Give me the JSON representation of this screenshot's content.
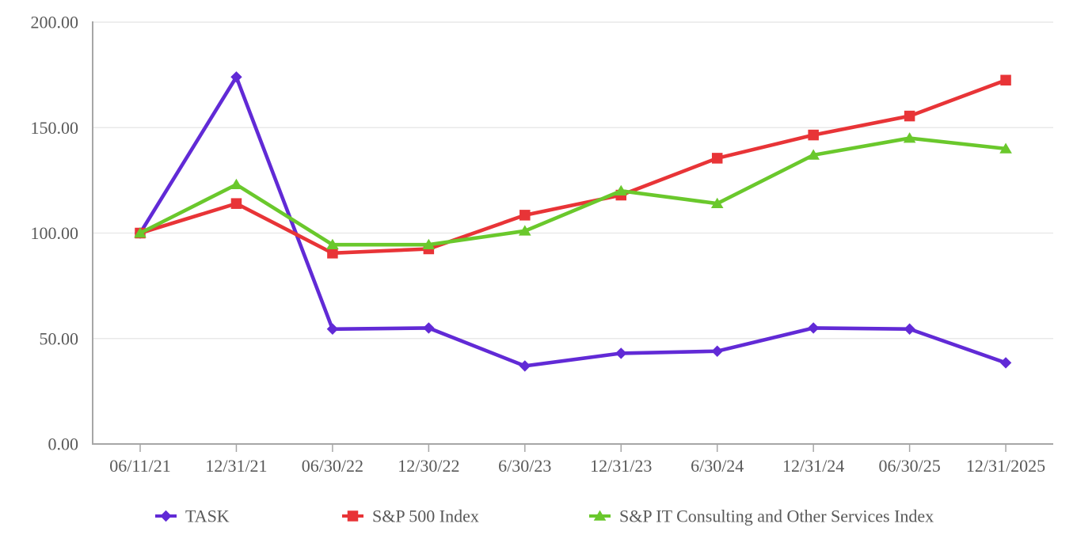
{
  "chart_data": {
    "type": "line",
    "title": "",
    "categories": [
      "06/11/21",
      "12/31/21",
      "06/30/22",
      "12/30/22",
      "6/30/23",
      "12/31/23",
      "6/30/24",
      "12/31/24",
      "06/30/25",
      "12/31/2025"
    ],
    "series": [
      {
        "name": "TASK",
        "color": "#612AD6",
        "marker": "diamond",
        "values": [
          100,
          174,
          54.5,
          55,
          37,
          43,
          44,
          55,
          54.5,
          38.5
        ]
      },
      {
        "name": "S&P 500 Index",
        "color": "#E83437",
        "marker": "square",
        "values": [
          100,
          114,
          90.5,
          92.5,
          108.5,
          118,
          135.5,
          146.5,
          155.5,
          172.5
        ]
      },
      {
        "name": "S&P IT Consulting and Other Services Index",
        "color": "#6AC82C",
        "marker": "triangle",
        "values": [
          100,
          123,
          94.5,
          94.5,
          101,
          120,
          114,
          137,
          145,
          140
        ]
      }
    ],
    "y_ticks": [
      {
        "label": "0.00",
        "value": 0
      },
      {
        "label": "50.00",
        "value": 50
      },
      {
        "label": "100.00",
        "value": 100
      },
      {
        "label": "150.00",
        "value": 150
      },
      {
        "label": "200.00",
        "value": 200
      }
    ],
    "ylim": [
      0,
      200
    ],
    "grid": true,
    "legend_position": "bottom",
    "axis_color": "#A6A6A6",
    "gridline_color": "#E9E9E9",
    "tick_label_color": "#595959"
  }
}
